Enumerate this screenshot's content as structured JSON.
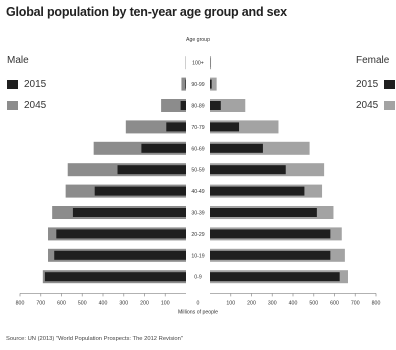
{
  "chart_data": {
    "type": "bar",
    "subtype": "population-pyramid",
    "title": "Global population by ten-year age group and sex",
    "center_header": "Age group",
    "xlabel": "Millions of people",
    "xlim": [
      -800,
      800
    ],
    "x_ticks": [
      "800",
      "700",
      "600",
      "500",
      "400",
      "300",
      "200",
      "100",
      "0",
      "100",
      "200",
      "300",
      "400",
      "500",
      "600",
      "700",
      "800"
    ],
    "categories": [
      "100+",
      "90-99",
      "80-89",
      "70-79",
      "60-69",
      "50-59",
      "40-49",
      "30-39",
      "20-29",
      "10-19",
      "0-9"
    ],
    "left_group": "Male",
    "right_group": "Female",
    "series": [
      {
        "name": "2015",
        "side": "Male",
        "color": "#1f1f1f",
        "values": [
          0,
          3,
          26,
          95,
          215,
          330,
          440,
          545,
          625,
          635,
          680
        ]
      },
      {
        "name": "2045",
        "side": "Male",
        "color": "#8c8c8c",
        "values": [
          2,
          22,
          120,
          290,
          445,
          570,
          580,
          645,
          665,
          665,
          690
        ]
      },
      {
        "name": "2015",
        "side": "Female",
        "color": "#1f1f1f",
        "values": [
          1,
          8,
          52,
          140,
          255,
          365,
          455,
          515,
          580,
          580,
          625
        ]
      },
      {
        "name": "2045",
        "side": "Female",
        "color": "#a3a3a3",
        "values": [
          5,
          32,
          170,
          330,
          480,
          550,
          540,
          595,
          635,
          650,
          665
        ]
      }
    ],
    "legend": {
      "position": "sides",
      "male_labels": [
        "2015",
        "2045"
      ],
      "female_labels": [
        "2015",
        "2045"
      ]
    },
    "source": "Source: UN (2013) \"World Population Prospects: The 2012 Revision\""
  },
  "colors": {
    "dark": "#1f1f1f",
    "male_light": "#8c8c8c",
    "female_light": "#a3a3a3",
    "axis": "#999999"
  }
}
